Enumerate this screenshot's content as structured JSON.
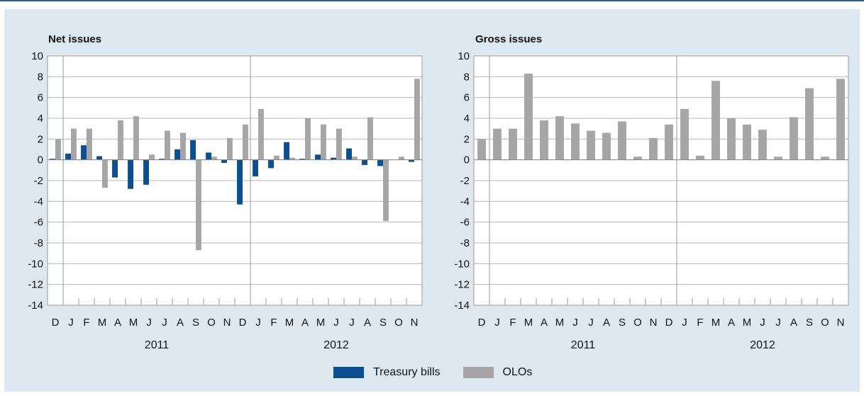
{
  "colors": {
    "treasury": "#0a4f91",
    "olos": "#a6a6a8",
    "panel_bg": "#dde8f0",
    "grid": "#b8b8b8"
  },
  "legend": {
    "treasury_label": "Treasury bills",
    "olos_label": "OLOs"
  },
  "chart_data": [
    {
      "type": "bar",
      "title": "Net issues",
      "categories": [
        "D",
        "J",
        "F",
        "M",
        "A",
        "M",
        "J",
        "J",
        "A",
        "S",
        "O",
        "N",
        "D",
        "J",
        "F",
        "M",
        "A",
        "M",
        "J",
        "J",
        "A",
        "S",
        "O",
        "N"
      ],
      "year_labels": [
        "2011",
        "2012"
      ],
      "ylim": [
        -14,
        10
      ],
      "yticks": [
        -14,
        -12,
        -10,
        -8,
        -6,
        -4,
        -2,
        0,
        2,
        4,
        6,
        8,
        10
      ],
      "grid": true,
      "legend_position": "bottom",
      "series": [
        {
          "name": "Treasury bills",
          "values": [
            0.1,
            0.6,
            1.4,
            0.35,
            -1.7,
            -2.8,
            -2.4,
            0.1,
            1.0,
            1.9,
            0.7,
            -0.3,
            -4.3,
            -1.6,
            -0.8,
            1.7,
            0.1,
            0.5,
            0.2,
            1.1,
            -0.5,
            -0.6,
            0.0,
            -0.2
          ]
        },
        {
          "name": "OLOs",
          "values": [
            2.0,
            3.0,
            3.0,
            -2.7,
            3.8,
            4.2,
            0.5,
            2.8,
            2.6,
            -8.7,
            0.3,
            2.1,
            3.4,
            4.9,
            0.4,
            0.2,
            4.0,
            3.4,
            3.0,
            0.3,
            4.1,
            -5.9,
            0.3,
            7.8
          ]
        }
      ]
    },
    {
      "type": "bar",
      "title": "Gross issues",
      "categories": [
        "D",
        "J",
        "F",
        "M",
        "A",
        "M",
        "J",
        "J",
        "A",
        "S",
        "O",
        "N",
        "D",
        "J",
        "F",
        "M",
        "A",
        "M",
        "J",
        "J",
        "A",
        "S",
        "O",
        "N"
      ],
      "year_labels": [
        "2011",
        "2012"
      ],
      "ylim": [
        -14,
        10
      ],
      "yticks": [
        -14,
        -12,
        -10,
        -8,
        -6,
        -4,
        -2,
        0,
        2,
        4,
        6,
        8,
        10
      ],
      "grid": true,
      "legend_position": "bottom",
      "series": [
        {
          "name": "OLOs",
          "values": [
            2.0,
            3.0,
            3.0,
            8.3,
            3.8,
            4.2,
            3.5,
            2.8,
            2.6,
            3.7,
            0.3,
            2.1,
            3.4,
            4.9,
            0.4,
            7.6,
            4.0,
            3.4,
            2.9,
            0.3,
            4.1,
            6.9,
            0.3,
            7.8
          ]
        }
      ]
    }
  ]
}
